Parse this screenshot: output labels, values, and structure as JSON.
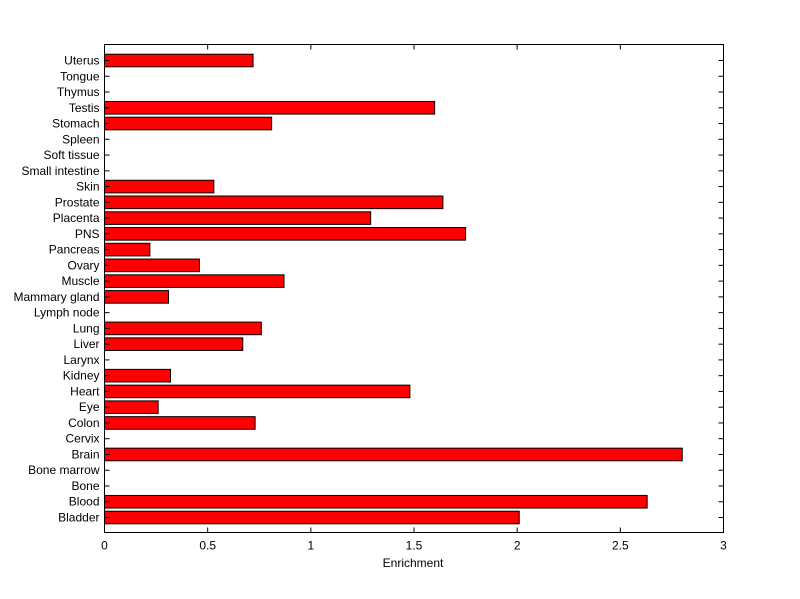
{
  "chart_data": {
    "type": "bar",
    "orientation": "horizontal",
    "xlabel": "Enrichment",
    "ylabel": "",
    "xlim": [
      0,
      3
    ],
    "xticks": [
      0,
      0.5,
      1,
      1.5,
      2,
      2.5,
      3
    ],
    "xtick_labels": [
      "0",
      "0.5",
      "1",
      "1.5",
      "2",
      "2.5",
      "3"
    ],
    "grid": false,
    "bar_color": "#ff0000",
    "categories": [
      "Bladder",
      "Blood",
      "Bone",
      "Bone marrow",
      "Brain",
      "Cervix",
      "Colon",
      "Eye",
      "Heart",
      "Kidney",
      "Larynx",
      "Liver",
      "Lung",
      "Lymph node",
      "Mammary gland",
      "Muscle",
      "Ovary",
      "Pancreas",
      "PNS",
      "Placenta",
      "Prostate",
      "Skin",
      "Small intestine",
      "Soft tissue",
      "Spleen",
      "Stomach",
      "Testis",
      "Thymus",
      "Tongue",
      "Uterus"
    ],
    "values": [
      2.01,
      2.63,
      0,
      0,
      2.8,
      0,
      0.73,
      0.26,
      1.48,
      0.32,
      0,
      0.67,
      0.76,
      0,
      0.31,
      0.87,
      0.46,
      0.22,
      1.75,
      1.29,
      1.64,
      0.53,
      0,
      0,
      0,
      0.81,
      1.6,
      0,
      0,
      0.72
    ]
  }
}
